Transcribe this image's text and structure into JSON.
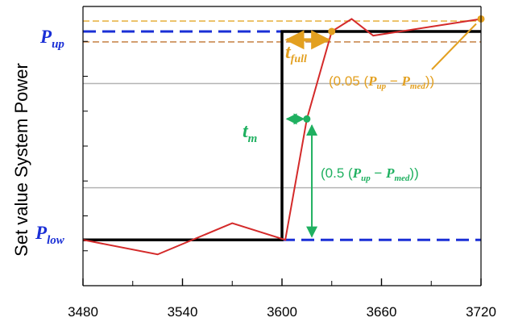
{
  "chart_data": {
    "type": "line",
    "title": "",
    "xlabel": "",
    "ylabel": "Set value System Power",
    "xlim": [
      3480,
      3720
    ],
    "ylim": [
      -0.22,
      1.12
    ],
    "x_ticks": [
      3480,
      3540,
      3600,
      3660,
      3720
    ],
    "x_minor_ticks": [
      3510,
      3570,
      3630,
      3690
    ],
    "grid": "horizontal lines at 0.25 and 0.75",
    "levels": {
      "p_low": 0,
      "p_up": 1
    },
    "setpoint_step": {
      "x": [
        3480,
        3600,
        3600,
        3720
      ],
      "y": [
        0,
        0,
        1,
        1
      ],
      "color": "#000000"
    },
    "response": {
      "x": [
        3480,
        3525,
        3570,
        3602,
        3615,
        3630,
        3642,
        3655,
        3720
      ],
      "y": [
        0,
        -0.07,
        0.08,
        0,
        0.58,
        1.0,
        1.06,
        0.98,
        1.06
      ],
      "color": "#d42a2a"
    },
    "reference_lines": {
      "p_up_color": "#1a2fd6",
      "p_low_color": "#1a2fd6",
      "upper_band_y": 1.05,
      "upper_band_color": "#e8b54a",
      "lower_band_y": 0.95,
      "lower_band_color": "#c98a50",
      "grid_color": "#b4b4b4"
    },
    "markers": [
      {
        "x": 3615,
        "y": 0.58,
        "color": "#1fb060"
      },
      {
        "x": 3630,
        "y": 1.0,
        "color": "#e3a020"
      },
      {
        "x": 3720,
        "y": 1.06,
        "color": "#e3a020"
      }
    ],
    "annotations": {
      "p_up": {
        "main": "P",
        "sub": "up",
        "color": "#1a2fd6"
      },
      "p_low": {
        "main": "P",
        "sub": "low",
        "color": "#1a2fd6"
      },
      "t_m": {
        "main": "t",
        "sub": "m",
        "color": "#1fb060"
      },
      "t_full": {
        "main": "t",
        "sub": "full",
        "color": "#e3a020"
      },
      "half_band": {
        "color": "#1fb060",
        "open": "(0.5 (",
        "p1": "P",
        "s1": "up",
        "minus": " − ",
        "p2": "P",
        "s2": "med",
        "close": "))"
      },
      "five_pct_band": {
        "color": "#e3a020",
        "open": "(0.05 (",
        "p1": "P",
        "s1": "up",
        "minus": " − ",
        "p2": "P",
        "s2": "med",
        "close": "))"
      }
    }
  }
}
